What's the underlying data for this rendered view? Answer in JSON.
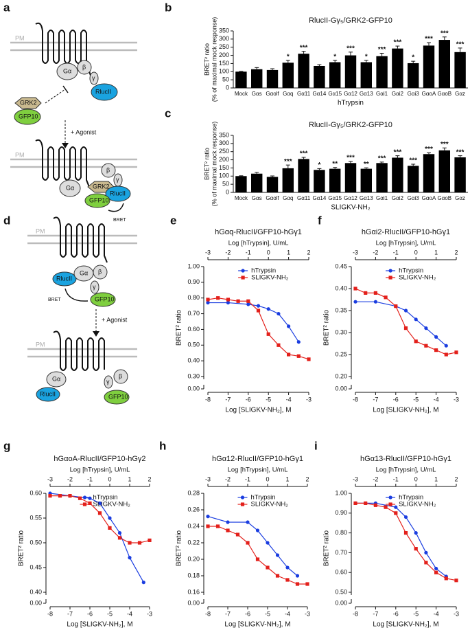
{
  "diagrams": [
    {
      "panel": "a",
      "labels": [
        "PM",
        "Gα",
        "β",
        "γ",
        "RlucII",
        "GRK2",
        "GFP10",
        "+ Agonist",
        "PM",
        "Gα",
        "β",
        "γ",
        "GRK2",
        "RlucII",
        "GFP10",
        "BRET"
      ]
    },
    {
      "panel": "d",
      "labels": [
        "PM",
        "RlucII",
        "Gα",
        "β",
        "γ",
        "GFP10",
        "BRET",
        "+ Agonist",
        "PM",
        "Gα",
        "RlucII",
        "γ",
        "β",
        "GFP10"
      ]
    }
  ],
  "chart_data": [
    {
      "type": "bar",
      "panel": "b",
      "title": "RlucII-Gγ₅/GRK2-GFP10",
      "x_label": "hTrypsin",
      "y_label": [
        "BRET² ratio",
        "(% of maximal mock response)"
      ],
      "categories": [
        "Mock",
        "Gαs",
        "Gαolf",
        "Gαq",
        "Gα11",
        "Gα14",
        "Gα15",
        "Gα12",
        "Gα13",
        "Gαi1",
        "Gαi2",
        "Gαi3",
        "GαoA",
        "GαoB",
        "Gαz"
      ],
      "values": [
        100,
        115,
        110,
        155,
        210,
        135,
        158,
        200,
        158,
        195,
        242,
        152,
        260,
        295,
        220
      ],
      "errors": [
        2,
        10,
        8,
        15,
        15,
        8,
        12,
        20,
        12,
        18,
        15,
        12,
        18,
        18,
        25
      ],
      "annotations": [
        null,
        null,
        null,
        "*",
        "***",
        null,
        "*",
        "***",
        "*",
        "***",
        "***",
        "*",
        "***",
        "***",
        "***"
      ],
      "color": "#000000",
      "ylim": [
        0,
        350
      ],
      "yticks": [
        0,
        50,
        100,
        150,
        200,
        250,
        300,
        350
      ]
    },
    {
      "type": "bar",
      "panel": "c",
      "title": "RlucII-Gγ₅/GRK2-GFP10",
      "x_label": "SLIGKV-NH₂",
      "y_label": [
        "BRET² ratio",
        "(% of maximal mock response)"
      ],
      "categories": [
        "Mock",
        "Gαs",
        "Gαolf",
        "Gαq",
        "Gα11",
        "Gα14",
        "Gα15",
        "Gα12",
        "Gα13",
        "Gαi1",
        "Gαi2",
        "Gαi3",
        "GαoA",
        "GαoB",
        "Gαz"
      ],
      "values": [
        100,
        115,
        95,
        148,
        205,
        138,
        145,
        180,
        145,
        180,
        213,
        163,
        235,
        258,
        215
      ],
      "errors": [
        2,
        8,
        6,
        20,
        10,
        8,
        8,
        10,
        6,
        6,
        12,
        10,
        8,
        15,
        10
      ],
      "annotations": [
        null,
        null,
        null,
        "***",
        "***",
        "*",
        "**",
        "***",
        "**",
        "***",
        "***",
        "***",
        "***",
        "***",
        "***"
      ],
      "color": "#000000",
      "ylim": [
        0,
        350
      ],
      "yticks": [
        0,
        50,
        100,
        150,
        200,
        250,
        300,
        350
      ]
    },
    {
      "type": "line",
      "panel": "e",
      "title": "hGαq-RlucII/GFP10-hGγ1",
      "x_label": "Log [SLIGKV-NH₂], M",
      "x2_label": "Log [hTrypsin], U/mL",
      "y_label": "BRET² ratio",
      "xlim": [
        -8,
        -3
      ],
      "xticks": [
        -8,
        -7,
        -6,
        -5,
        -4,
        -3
      ],
      "x2lim": [
        -3,
        2
      ],
      "x2ticks": [
        -3,
        -2,
        -1,
        0,
        1,
        2
      ],
      "ylim": [
        0.3,
        1.0
      ],
      "yticks": [
        {
          "value": 0.3,
          "label": "0.30"
        },
        {
          "value": 0.4,
          "label": "0.40"
        },
        {
          "value": 0.5,
          "label": "0.50"
        },
        {
          "value": 0.6,
          "label": "0.60"
        },
        {
          "value": 0.7,
          "label": "0.70"
        },
        {
          "value": 0.8,
          "label": "0.80"
        },
        {
          "value": 0.9,
          "label": "0.90"
        },
        {
          "value": 1.0,
          "label": "1.00"
        }
      ],
      "y_break_tick": {
        "value": 0,
        "label": "0.00"
      },
      "legend": "upper right",
      "series": [
        {
          "name": "hTrypsin",
          "color": "#1a3de0",
          "marker": "circle",
          "axis": "x2",
          "x": [
            -3,
            -2,
            -1,
            -0.5,
            0,
            0.5,
            1,
            1.5
          ],
          "values": [
            0.77,
            0.77,
            0.76,
            0.75,
            0.73,
            0.7,
            0.62,
            0.52
          ]
        },
        {
          "name": "SLIGKV-NH₂",
          "color": "#e3201b",
          "marker": "square",
          "x": [
            -8,
            -7.5,
            -7,
            -6.5,
            -6,
            -5.5,
            -5,
            -4.5,
            -4,
            -3.5,
            -3
          ],
          "values": [
            0.79,
            0.8,
            0.79,
            0.78,
            0.78,
            0.72,
            0.57,
            0.5,
            0.44,
            0.43,
            0.41
          ]
        }
      ]
    },
    {
      "type": "line",
      "panel": "f",
      "title": "hGαi2-RlucII/GFP10-hGγ1",
      "x_label": "Log [SLIGKV-NH₂], M",
      "x2_label": "Log [hTrypsin], U/mL",
      "y_label": "BRET² ratio",
      "xlim": [
        -8,
        -3
      ],
      "xticks": [
        -8,
        -7,
        -6,
        -5,
        -4,
        -3
      ],
      "x2lim": [
        -3,
        2
      ],
      "x2ticks": [
        -3,
        -2,
        -1,
        0,
        1,
        2
      ],
      "ylim": [
        0.2,
        0.45
      ],
      "yticks": [
        {
          "value": 0.2,
          "label": "0.20"
        },
        {
          "value": 0.25,
          "label": "0.25"
        },
        {
          "value": 0.3,
          "label": "0.30"
        },
        {
          "value": 0.35,
          "label": "0.35"
        },
        {
          "value": 0.4,
          "label": "0.40"
        },
        {
          "value": 0.45,
          "label": "0.45"
        }
      ],
      "y_break_tick": {
        "value": 0,
        "label": "0.00"
      },
      "legend": "upper right",
      "series": [
        {
          "name": "hTrypsin",
          "color": "#1a3de0",
          "marker": "circle",
          "axis": "x2",
          "x": [
            -3,
            -2,
            -1,
            -0.5,
            0,
            0.5,
            1,
            1.5
          ],
          "values": [
            0.37,
            0.37,
            0.36,
            0.35,
            0.33,
            0.31,
            0.29,
            0.27
          ]
        },
        {
          "name": "SLIGKV-NH₂",
          "color": "#e3201b",
          "marker": "square",
          "x": [
            -8,
            -7.5,
            -7,
            -6.5,
            -6,
            -5.5,
            -5,
            -4.5,
            -4,
            -3.5,
            -3
          ],
          "values": [
            0.4,
            0.39,
            0.39,
            0.38,
            0.36,
            0.31,
            0.28,
            0.27,
            0.26,
            0.25,
            0.255
          ]
        }
      ]
    },
    {
      "type": "line",
      "panel": "g",
      "title": "hGαoA-RlucII/GFP10-hGγ2",
      "x_label": "Log [SLIGKV-NH₂], M",
      "x2_label": "Log [hTrypsin], U/mL",
      "y_label": "BRET² ratio",
      "xlim": [
        -8,
        -3
      ],
      "xticks": [
        -8,
        -7,
        -6,
        -5,
        -4,
        -3
      ],
      "x2lim": [
        -3,
        2
      ],
      "x2ticks": [
        -3,
        -2,
        -1,
        0,
        1,
        2
      ],
      "ylim": [
        0.4,
        0.6
      ],
      "yticks": [
        {
          "value": 0.4,
          "label": "0.40"
        },
        {
          "value": 0.45,
          "label": "0.45"
        },
        {
          "value": 0.5,
          "label": "0.50"
        },
        {
          "value": 0.55,
          "label": "0.55"
        },
        {
          "value": 0.6,
          "label": "0.60"
        }
      ],
      "y_break_tick": {
        "value": 0,
        "label": "0.00"
      },
      "legend": "upper right",
      "series": [
        {
          "name": "hTrypsin",
          "color": "#1a3de0",
          "marker": "circle",
          "axis": "x2",
          "x": [
            -3,
            -2,
            -1,
            -0.5,
            0,
            0.5,
            1,
            1.7
          ],
          "values": [
            0.6,
            0.595,
            0.59,
            0.58,
            0.55,
            0.52,
            0.47,
            0.42
          ]
        },
        {
          "name": "SLIGKV-NH₂",
          "color": "#e3201b",
          "marker": "square",
          "x": [
            -8,
            -7.5,
            -7,
            -6.5,
            -6,
            -5.5,
            -5,
            -4.5,
            -4,
            -3.5,
            -3
          ],
          "values": [
            0.595,
            0.595,
            0.595,
            0.59,
            0.58,
            0.56,
            0.53,
            0.51,
            0.5,
            0.5,
            0.505
          ]
        }
      ]
    },
    {
      "type": "line",
      "panel": "h",
      "title": "hGα12-RlucII/GFP10-hGγ1",
      "x_label": "Log [SLIGKV-NH₂], M",
      "x2_label": "Log [hTrypsin], U/mL",
      "y_label": "BRET² ratio",
      "xlim": [
        -8,
        -3
      ],
      "xticks": [
        -8,
        -7,
        -6,
        -5,
        -4,
        -3
      ],
      "x2lim": [
        -3,
        2
      ],
      "x2ticks": [
        -3,
        -2,
        -1,
        0,
        1,
        2
      ],
      "ylim": [
        0.16,
        0.28
      ],
      "yticks": [
        {
          "value": 0.16,
          "label": "0.16"
        },
        {
          "value": 0.18,
          "label": "0.18"
        },
        {
          "value": 0.2,
          "label": "0.20"
        },
        {
          "value": 0.22,
          "label": "0.22"
        },
        {
          "value": 0.24,
          "label": "0.24"
        },
        {
          "value": 0.26,
          "label": "0.26"
        },
        {
          "value": 0.28,
          "label": "0.28"
        }
      ],
      "y_break_tick": {
        "value": 0,
        "label": "0.00"
      },
      "legend": "upper right",
      "series": [
        {
          "name": "hTrypsin",
          "color": "#1a3de0",
          "marker": "circle",
          "axis": "x2",
          "x": [
            -3,
            -2,
            -1,
            -0.5,
            0,
            0.5,
            1,
            1.5
          ],
          "values": [
            0.252,
            0.245,
            0.245,
            0.235,
            0.22,
            0.205,
            0.19,
            0.18
          ]
        },
        {
          "name": "SLIGKV-NH₂",
          "color": "#e3201b",
          "marker": "square",
          "x": [
            -8,
            -7.5,
            -7,
            -6.5,
            -6,
            -5.5,
            -5,
            -4.5,
            -4,
            -3.5,
            -3
          ],
          "values": [
            0.24,
            0.24,
            0.235,
            0.23,
            0.22,
            0.2,
            0.19,
            0.18,
            0.175,
            0.17,
            0.17
          ]
        }
      ]
    },
    {
      "type": "line",
      "panel": "i",
      "title": "hGα13-RlucII/GFP10-hGγ1",
      "x_label": "Log [SLIGKV-NH₂], M",
      "x2_label": "Log [hTrypsin], U/mL",
      "y_label": "BRET² ratio",
      "xlim": [
        -8,
        -3
      ],
      "xticks": [
        -8,
        -7,
        -6,
        -5,
        -4,
        -3
      ],
      "x2lim": [
        -3,
        2
      ],
      "x2ticks": [
        -3,
        -2,
        -1,
        0,
        1,
        2
      ],
      "ylim": [
        0.5,
        1.0
      ],
      "yticks": [
        {
          "value": 0.5,
          "label": "0.50"
        },
        {
          "value": 0.6,
          "label": "0.60"
        },
        {
          "value": 0.7,
          "label": "0.70"
        },
        {
          "value": 0.8,
          "label": "0.80"
        },
        {
          "value": 0.9,
          "label": "0.90"
        },
        {
          "value": 1.0,
          "label": "1.00"
        }
      ],
      "y_break_tick": {
        "value": 0,
        "label": "0.00"
      },
      "legend": "upper right",
      "series": [
        {
          "name": "hTrypsin",
          "color": "#1a3de0",
          "marker": "circle",
          "axis": "x2",
          "x": [
            -3,
            -2,
            -1,
            -0.5,
            0,
            0.5,
            1,
            1.5
          ],
          "values": [
            0.95,
            0.95,
            0.93,
            0.88,
            0.8,
            0.7,
            0.62,
            0.58
          ]
        },
        {
          "name": "SLIGKV-NH₂",
          "color": "#e3201b",
          "marker": "square",
          "x": [
            -8,
            -7.5,
            -7,
            -6.5,
            -6,
            -5.5,
            -5,
            -4.5,
            -4,
            -3.5,
            -3
          ],
          "values": [
            0.95,
            0.95,
            0.94,
            0.93,
            0.9,
            0.8,
            0.72,
            0.65,
            0.6,
            0.57,
            0.56
          ]
        }
      ]
    }
  ]
}
